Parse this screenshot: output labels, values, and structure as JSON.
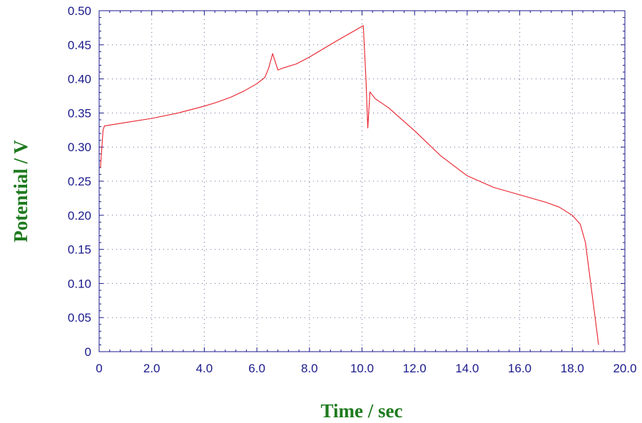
{
  "chart_data": {
    "type": "line",
    "title": "",
    "xlabel": "Time / sec",
    "ylabel": "Potential / V",
    "xlim": [
      0,
      20
    ],
    "ylim": [
      0,
      0.5
    ],
    "x_ticks": [
      0,
      2,
      4,
      6,
      8,
      10,
      12,
      14,
      16,
      18,
      20
    ],
    "x_tick_labels": [
      "0",
      "2.0",
      "4.0",
      "6.0",
      "8.0",
      "10.0",
      "12.0",
      "14.0",
      "16.0",
      "18.0",
      "20.0"
    ],
    "y_ticks": [
      0,
      0.05,
      0.1,
      0.15,
      0.2,
      0.25,
      0.3,
      0.35,
      0.4,
      0.45,
      0.5
    ],
    "y_tick_labels": [
      "0",
      "0.05",
      "0.10",
      "0.15",
      "0.20",
      "0.25",
      "0.30",
      "0.35",
      "0.40",
      "0.45",
      "0.50"
    ],
    "grid": true,
    "colors": {
      "line": "#e8202a",
      "axis": "#1a1a8c",
      "axis_title": "#1e7a1e"
    },
    "series": [
      {
        "x": [
          0.05,
          0.15,
          0.2,
          1.0,
          2.0,
          3.0,
          4.0,
          4.5,
          5.0,
          5.5,
          6.0,
          6.3,
          6.45,
          6.6,
          6.8,
          7.0,
          7.5,
          8.0,
          9.0,
          10.0,
          10.05,
          10.15,
          10.22,
          10.3,
          10.5,
          11.0,
          12.0,
          13.0,
          14.0,
          15.0,
          16.0,
          17.0,
          17.5,
          18.0,
          18.3,
          18.5,
          18.7,
          18.9,
          19.0
        ],
        "y": [
          0.27,
          0.325,
          0.331,
          0.336,
          0.342,
          0.35,
          0.36,
          0.366,
          0.373,
          0.382,
          0.393,
          0.402,
          0.416,
          0.437,
          0.413,
          0.416,
          0.422,
          0.432,
          0.455,
          0.477,
          0.478,
          0.4,
          0.328,
          0.381,
          0.371,
          0.358,
          0.324,
          0.287,
          0.258,
          0.241,
          0.23,
          0.219,
          0.212,
          0.2,
          0.187,
          0.16,
          0.1,
          0.04,
          0.01
        ]
      }
    ]
  }
}
